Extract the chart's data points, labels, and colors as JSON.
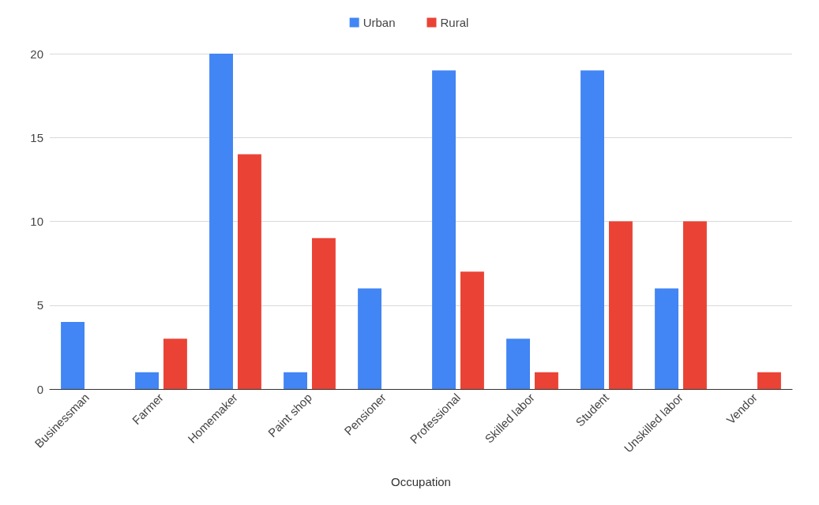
{
  "chart_data": {
    "type": "bar",
    "xlabel": "Occupation",
    "categories": [
      "Businessman",
      "Farmer",
      "Homemaker",
      "Paint shop",
      "Pensioner",
      "Professional",
      "Skilled labor",
      "Student",
      "Unskilled labor",
      "Vendor"
    ],
    "series": [
      {
        "name": "Urban",
        "color": "#4285f4",
        "values": [
          4,
          1,
          20,
          1,
          6,
          19,
          3,
          19,
          6,
          0
        ]
      },
      {
        "name": "Rural",
        "color": "#ea4335",
        "values": [
          0,
          3,
          14,
          9,
          0,
          7,
          1,
          10,
          10,
          1
        ]
      }
    ],
    "ylim": [
      0,
      20
    ],
    "yticks": [
      0,
      5,
      10,
      15,
      20
    ],
    "grid": "y",
    "legend": "top"
  }
}
